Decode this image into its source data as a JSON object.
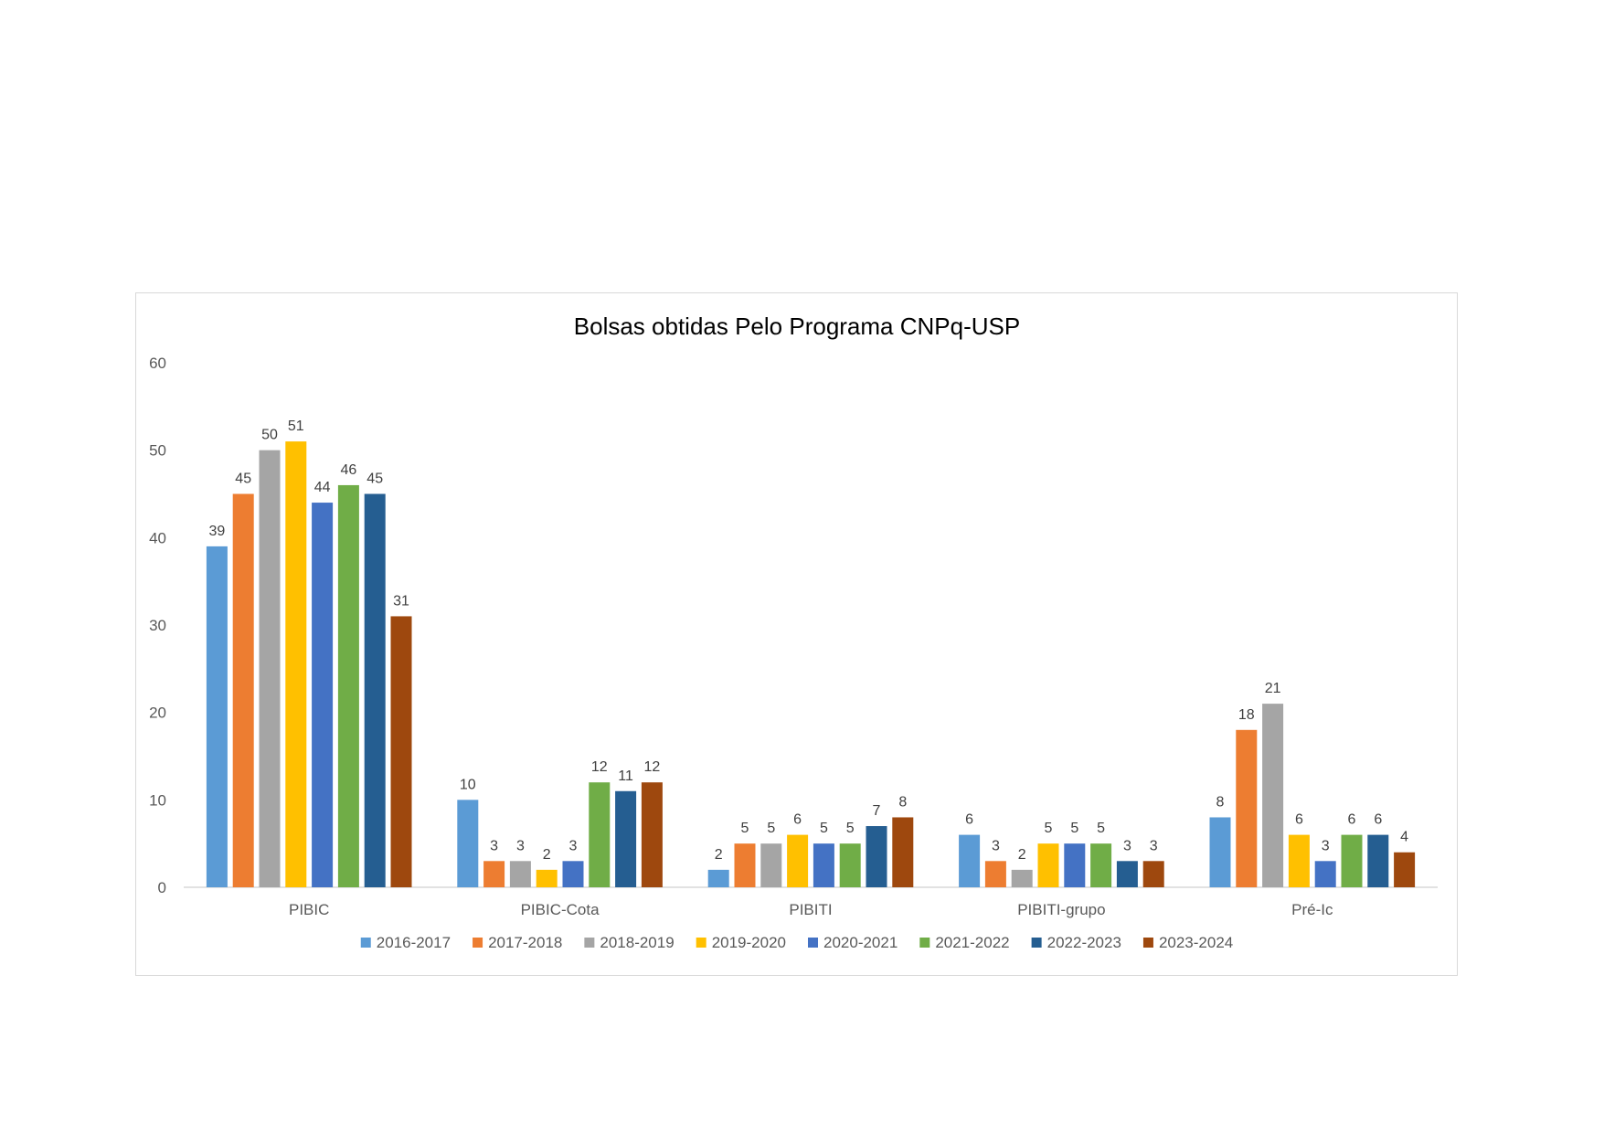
{
  "chart_data": {
    "type": "bar",
    "title": "Bolsas obtidas Pelo Programa CNPq-USP",
    "xlabel": "",
    "ylabel": "",
    "ylim": [
      0,
      60
    ],
    "yticks": [
      0,
      10,
      20,
      30,
      40,
      50,
      60
    ],
    "grid": false,
    "legend": "bottom",
    "categories": [
      "PIBIC",
      "PIBIC-Cota",
      "PIBITI",
      "PIBITI-grupo",
      "Pré-Ic"
    ],
    "series": [
      {
        "name": "2016-2017",
        "color": "#5b9bd5",
        "values": [
          39,
          10,
          2,
          6,
          8
        ]
      },
      {
        "name": "2017-2018",
        "color": "#ed7d31",
        "values": [
          45,
          3,
          5,
          3,
          18
        ]
      },
      {
        "name": "2018-2019",
        "color": "#a5a5a5",
        "values": [
          50,
          3,
          5,
          2,
          21
        ]
      },
      {
        "name": "2019-2020",
        "color": "#ffc000",
        "values": [
          51,
          2,
          6,
          5,
          6
        ]
      },
      {
        "name": "2020-2021",
        "color": "#4472c4",
        "values": [
          44,
          3,
          5,
          5,
          3
        ]
      },
      {
        "name": "2021-2022",
        "color": "#70ad47",
        "values": [
          46,
          12,
          5,
          5,
          6
        ]
      },
      {
        "name": "2022-2023",
        "color": "#255e91",
        "values": [
          45,
          11,
          7,
          3,
          6
        ]
      },
      {
        "name": "2023-2024",
        "color": "#9e480e",
        "values": [
          31,
          12,
          8,
          3,
          4
        ]
      }
    ]
  }
}
